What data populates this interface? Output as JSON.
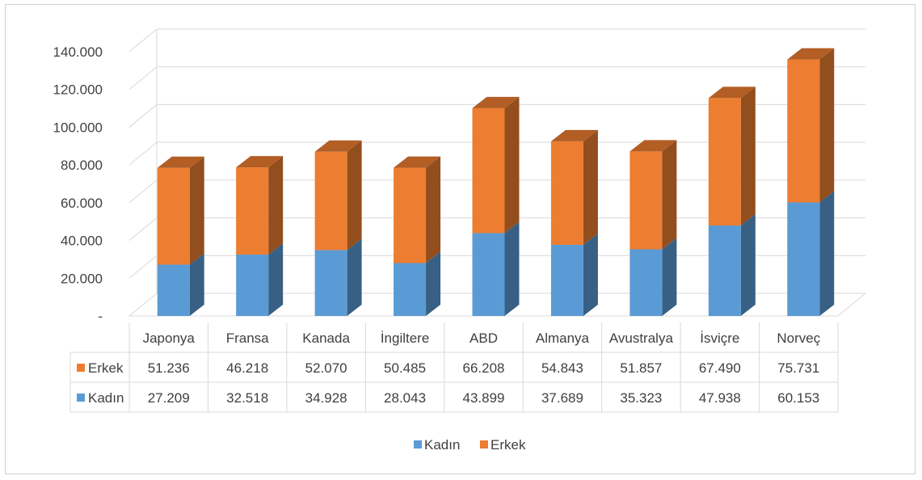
{
  "chart_data": {
    "type": "bar",
    "stacked": true,
    "three_d": true,
    "categories": [
      "Japonya",
      "Fransa",
      "Kanada",
      "İngiltere",
      "ABD",
      "Almanya",
      "Avustralya",
      "İsviçre",
      "Norveç"
    ],
    "series": [
      {
        "name": "Kadın",
        "values": [
          27209,
          32518,
          34928,
          28043,
          43899,
          37689,
          35323,
          47938,
          60153
        ],
        "labels": [
          "27.209",
          "32.518",
          "34.928",
          "28.043",
          "43.899",
          "37.689",
          "35.323",
          "47.938",
          "60.153"
        ],
        "color": "#5b9bd5"
      },
      {
        "name": "Erkek",
        "values": [
          51236,
          46218,
          52070,
          50485,
          66208,
          54843,
          51857,
          67490,
          75731
        ],
        "labels": [
          "51.236",
          "46.218",
          "52.070",
          "50.485",
          "66.208",
          "54.843",
          "51.857",
          "67.490",
          "75.731"
        ],
        "color": "#ed7d31"
      }
    ],
    "ylim": [
      0,
      140000
    ],
    "yticks": [
      0,
      20000,
      40000,
      60000,
      80000,
      100000,
      120000,
      140000
    ],
    "ytick_labels": [
      "-",
      "20.000",
      "40.000",
      "60.000",
      "80.000",
      "100.000",
      "120.000",
      "140.000"
    ],
    "table_rows": [
      "Erkek",
      "Kadın"
    ],
    "legend_position": "bottom",
    "grid": true
  }
}
